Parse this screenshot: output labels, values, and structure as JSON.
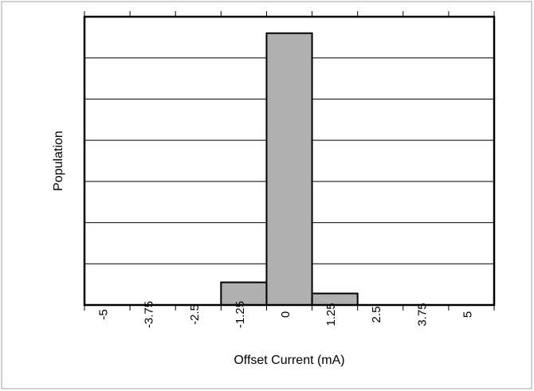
{
  "chart_data": {
    "type": "bar",
    "histogram": true,
    "title": "",
    "xlabel": "Offset Current (mA)",
    "ylabel": "Population",
    "x_ticks": [
      "-5",
      "-3.75",
      "-2.5",
      "-1.25",
      "0",
      "1.25",
      "2.5",
      "3.75",
      "5"
    ],
    "xlim": [
      -5.625,
      5.625
    ],
    "ylim": [
      0,
      7
    ],
    "y_tick_count": 7,
    "grid": "horizontal",
    "bins": [
      {
        "x0": -1.875,
        "x1": -0.625,
        "value": 0.55
      },
      {
        "x0": -0.625,
        "x1": 0.625,
        "value": 6.6
      },
      {
        "x0": 0.625,
        "x1": 1.875,
        "value": 0.28
      }
    ],
    "bar_color": "#b0b0b0"
  }
}
